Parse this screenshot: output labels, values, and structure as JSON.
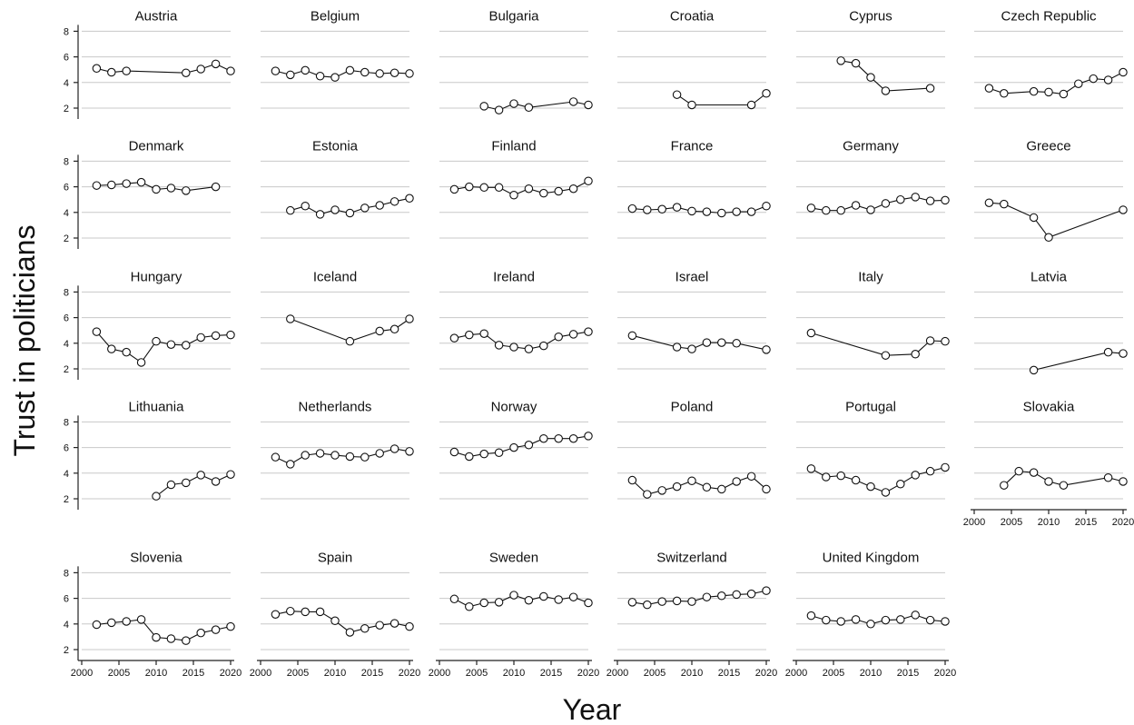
{
  "chart_data": {
    "type": "line",
    "layout": "small-multiples",
    "ylabel": "Trust in politicians",
    "xlabel": "Year",
    "xlim": [
      2000,
      2020
    ],
    "ylim": [
      1,
      8
    ],
    "xticks": [
      2000,
      2005,
      2010,
      2015,
      2020
    ],
    "yticks": [
      2,
      4,
      6,
      8
    ],
    "grid": "horizontal",
    "marker": "hollow-circle",
    "panels": [
      {
        "title": "Austria",
        "x": [
          2002,
          2004,
          2006,
          2014,
          2016,
          2018,
          2020
        ],
        "y": [
          5.1,
          4.8,
          4.9,
          4.75,
          5.05,
          5.45,
          4.9
        ]
      },
      {
        "title": "Belgium",
        "x": [
          2002,
          2004,
          2006,
          2008,
          2010,
          2012,
          2014,
          2016,
          2018,
          2020
        ],
        "y": [
          4.9,
          4.6,
          4.95,
          4.5,
          4.4,
          4.95,
          4.8,
          4.7,
          4.75,
          4.7
        ]
      },
      {
        "title": "Bulgaria",
        "x": [
          2006,
          2008,
          2010,
          2012,
          2018,
          2020
        ],
        "y": [
          2.15,
          1.85,
          2.35,
          2.05,
          2.5,
          2.25
        ]
      },
      {
        "title": "Croatia",
        "x": [
          2008,
          2010,
          2018,
          2020
        ],
        "y": [
          3.05,
          2.25,
          2.25,
          3.15
        ]
      },
      {
        "title": "Cyprus",
        "x": [
          2006,
          2008,
          2010,
          2012,
          2018
        ],
        "y": [
          5.7,
          5.5,
          4.4,
          3.35,
          3.55
        ]
      },
      {
        "title": "Czech Republic",
        "x": [
          2002,
          2004,
          2008,
          2010,
          2012,
          2014,
          2016,
          2018,
          2020
        ],
        "y": [
          3.55,
          3.15,
          3.3,
          3.25,
          3.1,
          3.9,
          4.3,
          4.2,
          4.8
        ]
      },
      {
        "title": "Denmark",
        "x": [
          2002,
          2004,
          2006,
          2008,
          2010,
          2012,
          2014,
          2018
        ],
        "y": [
          6.1,
          6.15,
          6.25,
          6.35,
          5.8,
          5.9,
          5.7,
          6.0
        ]
      },
      {
        "title": "Estonia",
        "x": [
          2004,
          2006,
          2008,
          2010,
          2012,
          2014,
          2016,
          2018,
          2020
        ],
        "y": [
          4.15,
          4.5,
          3.85,
          4.2,
          3.95,
          4.35,
          4.55,
          4.85,
          5.1
        ]
      },
      {
        "title": "Finland",
        "x": [
          2002,
          2004,
          2006,
          2008,
          2010,
          2012,
          2014,
          2016,
          2018,
          2020
        ],
        "y": [
          5.8,
          6.0,
          5.95,
          5.95,
          5.35,
          5.85,
          5.5,
          5.65,
          5.85,
          6.45
        ]
      },
      {
        "title": "France",
        "x": [
          2002,
          2004,
          2006,
          2008,
          2010,
          2012,
          2014,
          2016,
          2018,
          2020
        ],
        "y": [
          4.3,
          4.2,
          4.25,
          4.4,
          4.1,
          4.05,
          3.95,
          4.05,
          4.05,
          4.5
        ]
      },
      {
        "title": "Germany",
        "x": [
          2002,
          2004,
          2006,
          2008,
          2010,
          2012,
          2014,
          2016,
          2018,
          2020
        ],
        "y": [
          4.35,
          4.15,
          4.15,
          4.55,
          4.2,
          4.7,
          5.0,
          5.2,
          4.9,
          4.95
        ]
      },
      {
        "title": "Greece",
        "x": [
          2002,
          2004,
          2008,
          2010,
          2020
        ],
        "y": [
          4.75,
          4.65,
          3.6,
          2.05,
          4.2
        ]
      },
      {
        "title": "Hungary",
        "x": [
          2002,
          2004,
          2006,
          2008,
          2010,
          2012,
          2014,
          2016,
          2018,
          2020
        ],
        "y": [
          4.9,
          3.55,
          3.3,
          2.5,
          4.15,
          3.9,
          3.85,
          4.45,
          4.6,
          4.65
        ]
      },
      {
        "title": "Iceland",
        "x": [
          2004,
          2012,
          2016,
          2018,
          2020
        ],
        "y": [
          5.9,
          4.15,
          4.95,
          5.1,
          5.9
        ]
      },
      {
        "title": "Ireland",
        "x": [
          2002,
          2004,
          2006,
          2008,
          2010,
          2012,
          2014,
          2016,
          2018,
          2020
        ],
        "y": [
          4.4,
          4.65,
          4.75,
          3.85,
          3.7,
          3.55,
          3.8,
          4.5,
          4.7,
          4.9
        ]
      },
      {
        "title": "Israel",
        "x": [
          2002,
          2008,
          2010,
          2012,
          2014,
          2016,
          2020
        ],
        "y": [
          4.6,
          3.7,
          3.55,
          4.05,
          4.05,
          4.0,
          3.5
        ]
      },
      {
        "title": "Italy",
        "x": [
          2002,
          2012,
          2016,
          2018,
          2020
        ],
        "y": [
          4.8,
          3.05,
          3.15,
          4.2,
          4.15
        ]
      },
      {
        "title": "Latvia",
        "x": [
          2008,
          2018,
          2020
        ],
        "y": [
          1.9,
          3.3,
          3.2
        ]
      },
      {
        "title": "Lithuania",
        "x": [
          2010,
          2012,
          2014,
          2016,
          2018,
          2020
        ],
        "y": [
          2.2,
          3.1,
          3.25,
          3.85,
          3.35,
          3.9
        ]
      },
      {
        "title": "Netherlands",
        "x": [
          2002,
          2004,
          2006,
          2008,
          2010,
          2012,
          2014,
          2016,
          2018,
          2020
        ],
        "y": [
          5.25,
          4.7,
          5.4,
          5.55,
          5.4,
          5.3,
          5.25,
          5.55,
          5.9,
          5.7
        ]
      },
      {
        "title": "Norway",
        "x": [
          2002,
          2004,
          2006,
          2008,
          2010,
          2012,
          2014,
          2016,
          2018,
          2020
        ],
        "y": [
          5.65,
          5.3,
          5.5,
          5.6,
          6.0,
          6.2,
          6.7,
          6.7,
          6.7,
          6.9
        ]
      },
      {
        "title": "Poland",
        "x": [
          2002,
          2004,
          2006,
          2008,
          2010,
          2012,
          2014,
          2016,
          2018,
          2020
        ],
        "y": [
          3.45,
          2.35,
          2.65,
          2.95,
          3.4,
          2.9,
          2.75,
          3.35,
          3.75,
          2.75
        ]
      },
      {
        "title": "Portugal",
        "x": [
          2002,
          2004,
          2006,
          2008,
          2010,
          2012,
          2014,
          2016,
          2018,
          2020
        ],
        "y": [
          4.35,
          3.7,
          3.8,
          3.45,
          2.95,
          2.5,
          3.15,
          3.85,
          4.15,
          4.45
        ]
      },
      {
        "title": "Slovakia",
        "x": [
          2004,
          2006,
          2008,
          2010,
          2012,
          2018,
          2020
        ],
        "y": [
          3.05,
          4.15,
          4.05,
          3.35,
          3.05,
          3.65,
          3.35
        ]
      },
      {
        "title": "Slovenia",
        "x": [
          2002,
          2004,
          2006,
          2008,
          2010,
          2012,
          2014,
          2016,
          2018,
          2020
        ],
        "y": [
          3.95,
          4.1,
          4.2,
          4.35,
          2.95,
          2.85,
          2.7,
          3.3,
          3.55,
          3.8
        ]
      },
      {
        "title": "Spain",
        "x": [
          2002,
          2004,
          2006,
          2008,
          2010,
          2012,
          2014,
          2016,
          2018,
          2020
        ],
        "y": [
          4.75,
          5.0,
          4.95,
          4.95,
          4.25,
          3.35,
          3.65,
          3.9,
          4.05,
          3.8
        ]
      },
      {
        "title": "Sweden",
        "x": [
          2002,
          2004,
          2006,
          2008,
          2010,
          2012,
          2014,
          2016,
          2018,
          2020
        ],
        "y": [
          5.95,
          5.35,
          5.65,
          5.7,
          6.25,
          5.85,
          6.15,
          5.9,
          6.1,
          5.65
        ]
      },
      {
        "title": "Switzerland",
        "x": [
          2002,
          2004,
          2006,
          2008,
          2010,
          2012,
          2014,
          2016,
          2018,
          2020
        ],
        "y": [
          5.7,
          5.5,
          5.75,
          5.8,
          5.75,
          6.1,
          6.2,
          6.3,
          6.35,
          6.6
        ]
      },
      {
        "title": "United Kingdom",
        "x": [
          2002,
          2004,
          2006,
          2008,
          2010,
          2012,
          2014,
          2016,
          2018,
          2020
        ],
        "y": [
          4.65,
          4.3,
          4.2,
          4.35,
          4.0,
          4.3,
          4.35,
          4.7,
          4.3,
          4.2
        ]
      }
    ]
  }
}
